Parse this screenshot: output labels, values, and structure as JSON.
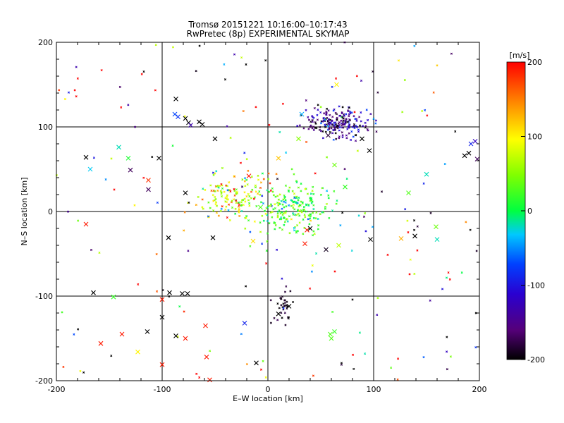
{
  "chart_data": {
    "type": "scatter",
    "title": "Tromsø 20151221 10:16:00–10:17:43",
    "subtitle": "RwPretec (8p) EXPERIMENTAL SKYMAP",
    "xlabel": "E–W location [km]",
    "ylabel": "N–S location [km]",
    "xlim": [
      -200,
      200
    ],
    "ylim": [
      -200,
      200
    ],
    "xticks": [
      -200,
      -100,
      0,
      100,
      200
    ],
    "yticks": [
      -200,
      -100,
      0,
      100,
      200
    ],
    "grid_lines": [
      -100,
      0,
      100
    ],
    "colorbar": {
      "label": "[m/s]",
      "range": [
        -200,
        200
      ],
      "ticks": [
        -200,
        -100,
        0,
        100,
        200
      ],
      "colormap": "rainbow (black–purple–blue–cyan–green–yellow–red)"
    },
    "clusters": [
      {
        "name": "north-east",
        "center": [
          65,
          105
        ],
        "spread": [
          14,
          9
        ],
        "count": 210,
        "velocity_mean": -150,
        "velocity_spread": 40
      },
      {
        "name": "central",
        "center": [
          20,
          5
        ],
        "spread": [
          20,
          17
        ],
        "count": 210,
        "velocity_mean": 20,
        "velocity_spread": 30
      },
      {
        "name": "central-west",
        "center": [
          -32,
          15
        ],
        "spread": [
          17,
          14
        ],
        "count": 150,
        "velocity_mean": 80,
        "velocity_spread": 60
      },
      {
        "name": "south-arc",
        "center": [
          15,
          -112
        ],
        "spread": [
          5,
          10
        ],
        "count": 35,
        "velocity_mean": -190,
        "velocity_spread": 10
      },
      {
        "name": "scattered",
        "center": [
          0,
          0
        ],
        "spread": [
          200,
          200
        ],
        "count": 180,
        "velocity_mean": 0,
        "velocity_spread": 200
      }
    ],
    "crosses": [
      {
        "x": -172,
        "y": 64,
        "v": -200
      },
      {
        "x": -168,
        "y": 50,
        "v": -30
      },
      {
        "x": -141,
        "y": 76,
        "v": -20
      },
      {
        "x": -132,
        "y": 63,
        "v": 10
      },
      {
        "x": -130,
        "y": 49,
        "v": -170
      },
      {
        "x": -113,
        "y": 37,
        "v": 180
      },
      {
        "x": -113,
        "y": 26,
        "v": -170
      },
      {
        "x": -103,
        "y": 63,
        "v": -200
      },
      {
        "x": -87,
        "y": 133,
        "v": -200
      },
      {
        "x": -88,
        "y": 115,
        "v": -70
      },
      {
        "x": -85,
        "y": 112,
        "v": -80
      },
      {
        "x": -78,
        "y": 110,
        "v": -200
      },
      {
        "x": -75,
        "y": 105,
        "v": -200
      },
      {
        "x": -73,
        "y": 102,
        "v": -130
      },
      {
        "x": -65,
        "y": 106,
        "v": -200
      },
      {
        "x": -62,
        "y": 103,
        "v": -200
      },
      {
        "x": -50,
        "y": 86,
        "v": -200
      },
      {
        "x": -78,
        "y": 22,
        "v": -200
      },
      {
        "x": -172,
        "y": -15,
        "v": 190
      },
      {
        "x": -94,
        "y": -31,
        "v": -200
      },
      {
        "x": -52,
        "y": -31,
        "v": -200
      },
      {
        "x": -14,
        "y": -35,
        "v": 110
      },
      {
        "x": -165,
        "y": -96,
        "v": -200
      },
      {
        "x": -146,
        "y": -101,
        "v": 20
      },
      {
        "x": -100,
        "y": -104,
        "v": 190
      },
      {
        "x": -93,
        "y": -96,
        "v": -200
      },
      {
        "x": -81,
        "y": -97,
        "v": -200
      },
      {
        "x": -76,
        "y": -97,
        "v": -200
      },
      {
        "x": -100,
        "y": -125,
        "v": -200
      },
      {
        "x": -138,
        "y": -145,
        "v": 190
      },
      {
        "x": -158,
        "y": -156,
        "v": 190
      },
      {
        "x": -114,
        "y": -142,
        "v": -200
      },
      {
        "x": -87,
        "y": -147,
        "v": -200
      },
      {
        "x": -78,
        "y": -150,
        "v": 190
      },
      {
        "x": -59,
        "y": -135,
        "v": 190
      },
      {
        "x": -123,
        "y": -166,
        "v": 100
      },
      {
        "x": -100,
        "y": -181,
        "v": 190
      },
      {
        "x": -58,
        "y": -172,
        "v": 190
      },
      {
        "x": -55,
        "y": -199,
        "v": 190
      },
      {
        "x": -11,
        "y": -179,
        "v": -200
      },
      {
        "x": -22,
        "y": -132,
        "v": -90
      },
      {
        "x": 20,
        "y": -112,
        "v": -200
      },
      {
        "x": 10,
        "y": -121,
        "v": -200
      },
      {
        "x": 59,
        "y": -145,
        "v": 30
      },
      {
        "x": 63,
        "y": -142,
        "v": 20
      },
      {
        "x": 60,
        "y": -150,
        "v": 30
      },
      {
        "x": 55,
        "y": -45,
        "v": -190
      },
      {
        "x": 67,
        "y": -40,
        "v": 70
      },
      {
        "x": 97,
        "y": -33,
        "v": -200
      },
      {
        "x": 35,
        "y": -38,
        "v": 190
      },
      {
        "x": 40,
        "y": -20,
        "v": -200
      },
      {
        "x": 37,
        "y": -22,
        "v": 190
      },
      {
        "x": 139,
        "y": -29,
        "v": -200
      },
      {
        "x": 126,
        "y": -32,
        "v": 130
      },
      {
        "x": 159,
        "y": -18,
        "v": 40
      },
      {
        "x": 160,
        "y": -33,
        "v": -20
      },
      {
        "x": 186,
        "y": 66,
        "v": -200
      },
      {
        "x": 192,
        "y": 80,
        "v": -90
      },
      {
        "x": 196,
        "y": 83,
        "v": -120
      },
      {
        "x": 190,
        "y": 69,
        "v": -200
      },
      {
        "x": 198,
        "y": 62,
        "v": -170
      },
      {
        "x": 150,
        "y": 44,
        "v": -20
      },
      {
        "x": 133,
        "y": 22,
        "v": 30
      },
      {
        "x": 73,
        "y": 29,
        "v": 20
      },
      {
        "x": 63,
        "y": 55,
        "v": 40
      },
      {
        "x": 65,
        "y": 150,
        "v": 100
      },
      {
        "x": 96,
        "y": 72,
        "v": -200
      },
      {
        "x": 89,
        "y": 86,
        "v": -200
      },
      {
        "x": 32,
        "y": 115,
        "v": -40
      },
      {
        "x": 29,
        "y": 86,
        "v": 50
      },
      {
        "x": 57,
        "y": 90,
        "v": -180
      },
      {
        "x": -7,
        "y": 5,
        "v": 30
      },
      {
        "x": -18,
        "y": 42,
        "v": 190
      },
      {
        "x": 10,
        "y": 63,
        "v": 120
      }
    ]
  }
}
